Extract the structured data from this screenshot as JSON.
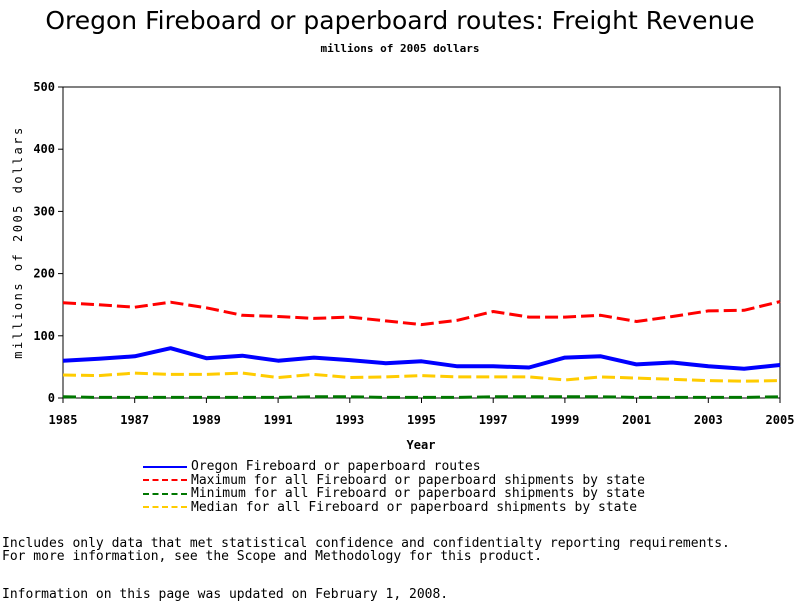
{
  "chart_data": {
    "type": "line",
    "title": "Oregon Fireboard or paperboard routes: Freight Revenue",
    "subtitle": "millions of 2005 dollars",
    "xlabel": "Year",
    "ylabel": "millions of 2005 dollars",
    "xlim": [
      1985,
      2005
    ],
    "ylim": [
      0,
      500
    ],
    "x_ticks": [
      "1985",
      "1987",
      "1989",
      "1991",
      "1993",
      "1995",
      "1997",
      "1999",
      "2001",
      "2003",
      "2005"
    ],
    "y_ticks": [
      "0",
      "100",
      "200",
      "300",
      "400",
      "500"
    ],
    "x": [
      1985,
      1986,
      1987,
      1988,
      1989,
      1990,
      1991,
      1992,
      1993,
      1994,
      1995,
      1996,
      1997,
      1998,
      1999,
      2000,
      2001,
      2002,
      2003,
      2004,
      2005
    ],
    "grid": false,
    "legend_position": "bottom",
    "series": [
      {
        "name": "Oregon Fireboard or paperboard routes",
        "color": "#0000ff",
        "style": "solid",
        "values": [
          60,
          63,
          67,
          80,
          64,
          68,
          60,
          65,
          61,
          56,
          59,
          51,
          51,
          49,
          65,
          67,
          54,
          57,
          51,
          47,
          53
        ]
      },
      {
        "name": "Maximum for all Fireboard or paperboard shipments by state",
        "color": "#ff0000",
        "style": "dashed",
        "values": [
          153,
          150,
          146,
          154,
          145,
          133,
          131,
          128,
          130,
          124,
          118,
          125,
          139,
          130,
          130,
          133,
          123,
          131,
          140,
          141,
          155
        ]
      },
      {
        "name": "Minimum for all Fireboard or paperboard shipments by state",
        "color": "#007700",
        "style": "dashed",
        "values": [
          2,
          1,
          1,
          1,
          1,
          1,
          1,
          2,
          2,
          1,
          1,
          1,
          2,
          2,
          2,
          2,
          1,
          1,
          1,
          1,
          2
        ]
      },
      {
        "name": "Median for all Fireboard or paperboard shipments by state",
        "color": "#ffcc00",
        "style": "dashed",
        "values": [
          37,
          36,
          40,
          38,
          38,
          40,
          33,
          38,
          33,
          34,
          36,
          34,
          34,
          34,
          29,
          34,
          32,
          30,
          28,
          27,
          28
        ]
      }
    ]
  },
  "footnotes": {
    "line1": "Includes only data that met statistical confidence and confidentialty reporting requirements.",
    "line2": "For more information, see the Scope and Methodology for this product.",
    "updated": "Information on this page was updated on February 1, 2008."
  }
}
